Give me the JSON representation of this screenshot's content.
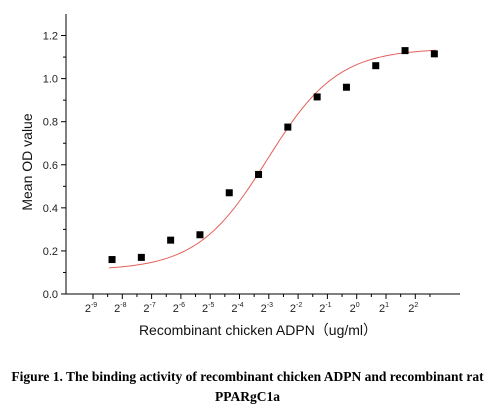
{
  "chart_data": {
    "type": "scatter",
    "title": "",
    "xlabel": "Recombinant chicken ADPN（ug/ml）",
    "ylabel": "Mean OD value",
    "x_scale": "log2",
    "x_tick_base": "2",
    "x_tick_exponents": [
      "-9",
      "-8",
      "-7",
      "-6",
      "-5",
      "-4",
      "-3",
      "-2",
      "-1",
      "0",
      "1",
      "2"
    ],
    "y_ticks": [
      "0.0",
      "0.2",
      "0.4",
      "0.6",
      "0.8",
      "1.0",
      "1.2"
    ],
    "ylim": [
      0,
      1.3
    ],
    "points": [
      {
        "x_exponent": -8.35,
        "y": 0.16
      },
      {
        "x_exponent": -7.35,
        "y": 0.17
      },
      {
        "x_exponent": -6.35,
        "y": 0.25
      },
      {
        "x_exponent": -5.35,
        "y": 0.275
      },
      {
        "x_exponent": -4.35,
        "y": 0.47
      },
      {
        "x_exponent": -3.35,
        "y": 0.555
      },
      {
        "x_exponent": -2.35,
        "y": 0.775
      },
      {
        "x_exponent": -1.35,
        "y": 0.915
      },
      {
        "x_exponent": -0.35,
        "y": 0.96
      },
      {
        "x_exponent": 0.65,
        "y": 1.06
      },
      {
        "x_exponent": 1.65,
        "y": 1.13
      },
      {
        "x_exponent": 2.65,
        "y": 1.115
      }
    ],
    "fit_curve": {
      "type": "sigmoidal",
      "color": "#e4605a"
    },
    "marker": {
      "shape": "square",
      "color": "#000000"
    },
    "grid": false,
    "legend": "none"
  },
  "caption": {
    "line1": "Figure 1. The binding activity of recombinant chicken ADPN and recombinant rat",
    "line2": "PPARgC1a"
  }
}
